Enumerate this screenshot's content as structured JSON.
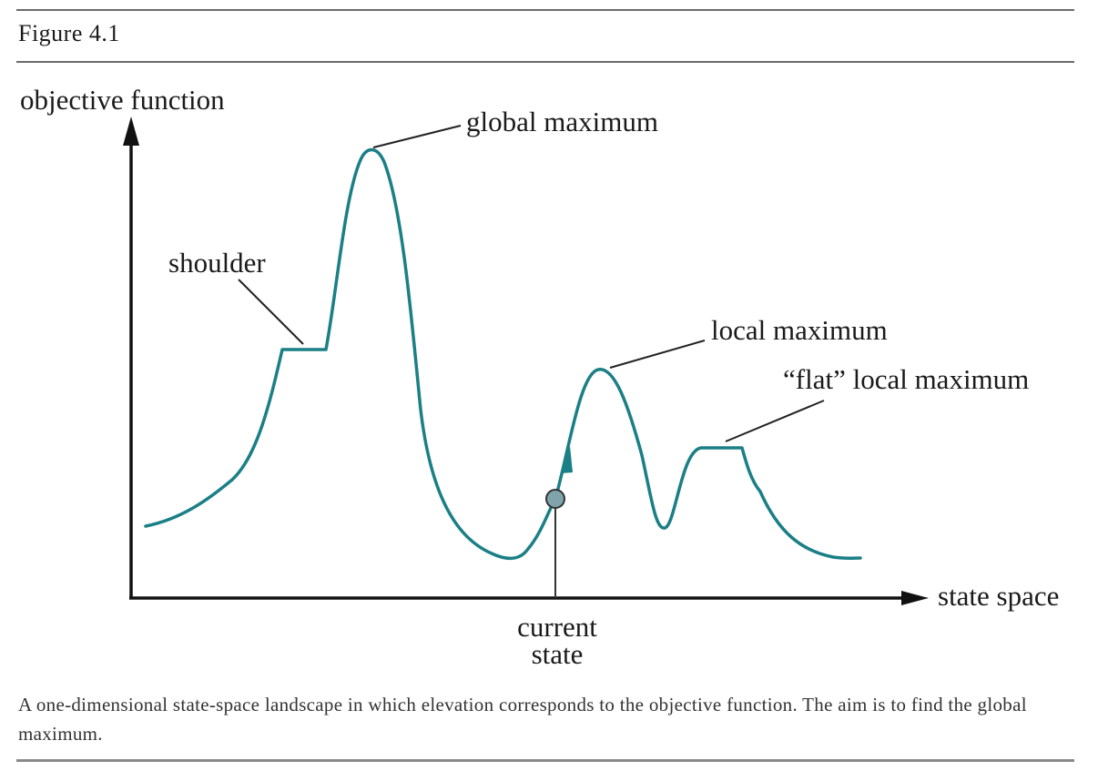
{
  "figure": {
    "label": "Figure 4.1"
  },
  "diagram": {
    "y_axis_label": "objective function",
    "x_axis_label": "state space",
    "annotations": {
      "global_maximum": "global maximum",
      "shoulder": "shoulder",
      "local_maximum": "local maximum",
      "flat_local_maximum": "“flat” local maximum",
      "current_state_line1": "current",
      "current_state_line2": "state"
    },
    "colors": {
      "curve": "#1a7f86",
      "axis": "#111111",
      "current_state_marker": "#7fa4ab"
    }
  },
  "caption": "A one-dimensional state-space landscape in which elevation corresponds to the objective function. The aim is to find the global maximum."
}
